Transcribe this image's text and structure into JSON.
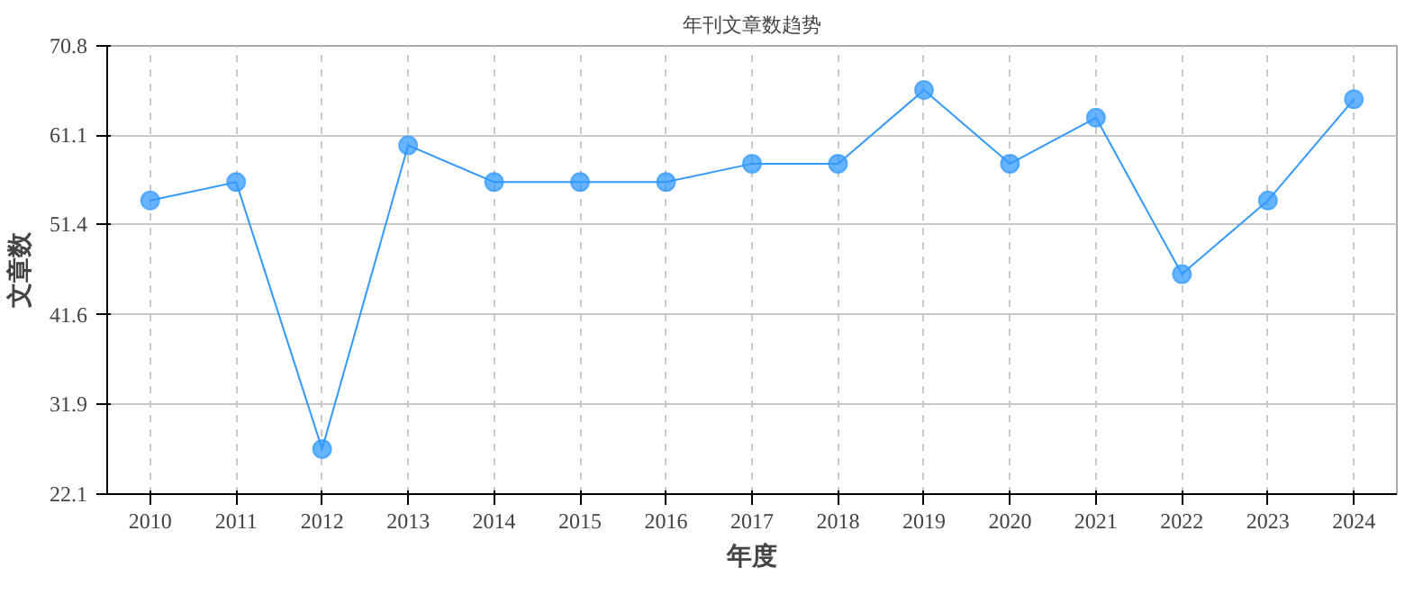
{
  "chart_data": {
    "type": "line",
    "title": "年刊文章数趋势",
    "xlabel": "年度",
    "ylabel": "文章数",
    "categories": [
      "2010",
      "2011",
      "2012",
      "2013",
      "2014",
      "2015",
      "2016",
      "2017",
      "2018",
      "2019",
      "2020",
      "2021",
      "2022",
      "2023",
      "2024"
    ],
    "series": [
      {
        "color": "#3399ff",
        "values": [
          54,
          56,
          27,
          60,
          56,
          56,
          56,
          58,
          58,
          66,
          58,
          63,
          46,
          54,
          65
        ]
      }
    ],
    "ylim": [
      22.1,
      70.8
    ],
    "yticks": [
      22.1,
      31.9,
      41.6,
      51.4,
      61.1,
      70.8
    ],
    "grid": true,
    "marker": "circle",
    "line_style": "solid"
  }
}
